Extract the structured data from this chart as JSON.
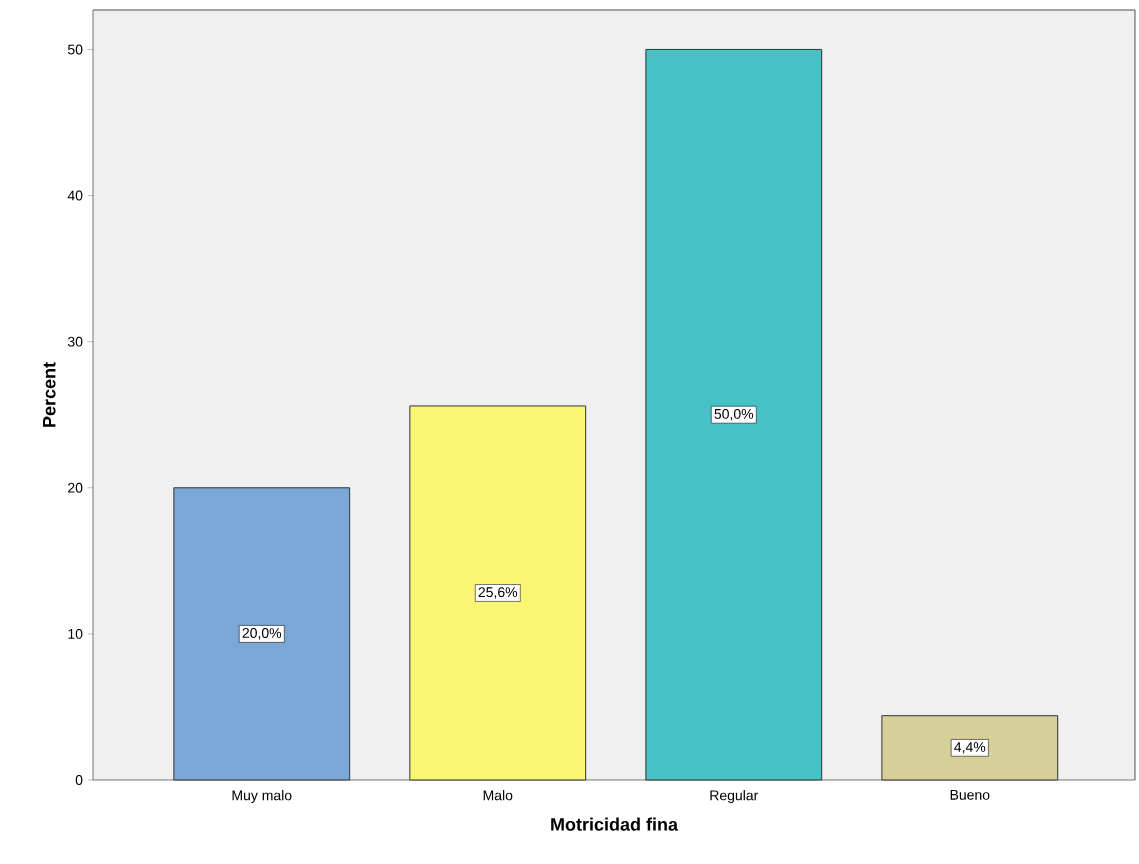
{
  "chart_data": {
    "type": "bar",
    "xlabel": "Motricidad fina",
    "ylabel": "Percent",
    "categories": [
      "Muy malo",
      "Malo",
      "Regular",
      "Bueno"
    ],
    "values": [
      20.0,
      25.6,
      50.0,
      4.4
    ],
    "value_labels": [
      "20,0%",
      "25,6%",
      "50,0%",
      "4,4%"
    ],
    "colors": [
      "#7ba7d6",
      "#faf573",
      "#47c1c5",
      "#d5cf98"
    ],
    "ylim": [
      0,
      52.7
    ],
    "yticks": [
      0,
      10,
      20,
      30,
      40,
      50
    ]
  }
}
